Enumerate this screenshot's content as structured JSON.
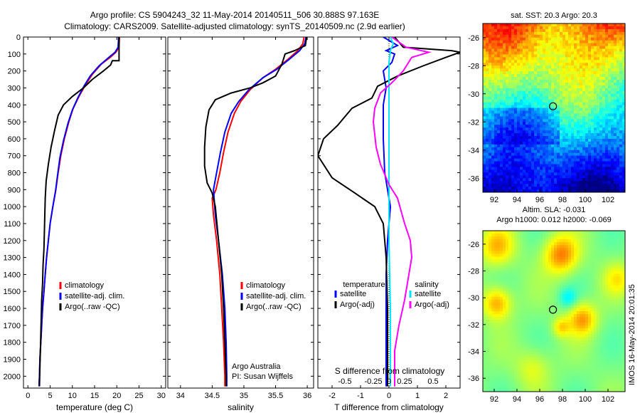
{
  "header": {
    "line1": "Argo profile: CS 5904243_32 11-May-2014 20140511_506 30.888S 97.163E",
    "line2": "Climatology: CARS2009. Satellite-adjusted climatology: synTS_20140509.nc (2.9d earlier)"
  },
  "colors": {
    "climatology": "#ff0000",
    "satellite": "#0000ff",
    "argo": "#000000",
    "sal_satellite": "#00e5ff",
    "sal_argo": "#ff00ff"
  },
  "chart_data": [
    {
      "type": "line",
      "id": "temperature",
      "xlabel": "temperature (deg C)",
      "ylabel": "",
      "xlim": [
        -1,
        31
      ],
      "ylim": [
        2070,
        0
      ],
      "xticks": [
        0,
        5,
        10,
        15,
        20,
        25,
        30
      ],
      "yticks": [
        0,
        100,
        200,
        300,
        400,
        500,
        600,
        700,
        800,
        900,
        1000,
        1100,
        1200,
        1300,
        1400,
        1500,
        1600,
        1700,
        1800,
        1900,
        2000
      ],
      "legend": [
        "climatology",
        "satellite-adj. clim.",
        "Argo(..raw -QC)"
      ],
      "series": [
        {
          "name": "climatology",
          "color": "#ff0000",
          "points": [
            [
              20.6,
              0
            ],
            [
              20.5,
              60
            ],
            [
              19.8,
              90
            ],
            [
              18.5,
              120
            ],
            [
              16.5,
              160
            ],
            [
              14.5,
              220
            ],
            [
              13,
              280
            ],
            [
              11.5,
              350
            ],
            [
              10.2,
              420
            ],
            [
              9.2,
              500
            ],
            [
              8.2,
              600
            ],
            [
              7.4,
              700
            ],
            [
              6.8,
              800
            ],
            [
              6.3,
              900
            ],
            [
              5.6,
              1000
            ],
            [
              5.0,
              1100
            ],
            [
              4.6,
              1200
            ],
            [
              4.2,
              1300
            ],
            [
              3.9,
              1400
            ],
            [
              3.6,
              1500
            ],
            [
              3.3,
              1600
            ],
            [
              3.1,
              1700
            ],
            [
              2.9,
              1800
            ],
            [
              2.7,
              1900
            ],
            [
              2.6,
              2000
            ],
            [
              2.5,
              2060
            ]
          ]
        },
        {
          "name": "satellite-adj. clim.",
          "color": "#0000ff",
          "points": [
            [
              20.4,
              0
            ],
            [
              20.3,
              60
            ],
            [
              19.6,
              90
            ],
            [
              18.2,
              120
            ],
            [
              16,
              170
            ],
            [
              14,
              230
            ],
            [
              12.6,
              290
            ],
            [
              11.2,
              360
            ],
            [
              10.0,
              430
            ],
            [
              9.0,
              510
            ],
            [
              8.0,
              610
            ],
            [
              7.2,
              710
            ],
            [
              6.7,
              810
            ],
            [
              6.2,
              910
            ],
            [
              5.6,
              1000
            ],
            [
              5.0,
              1100
            ],
            [
              4.6,
              1200
            ],
            [
              4.2,
              1300
            ],
            [
              3.9,
              1400
            ],
            [
              3.6,
              1500
            ],
            [
              3.3,
              1600
            ],
            [
              3.1,
              1700
            ],
            [
              2.9,
              1800
            ],
            [
              2.7,
              1900
            ],
            [
              2.6,
              2000
            ],
            [
              2.5,
              2060
            ]
          ]
        },
        {
          "name": "Argo(..raw -QC)",
          "color": "#000000",
          "points": [
            [
              20.5,
              0
            ],
            [
              20.5,
              140
            ],
            [
              19,
              140
            ],
            [
              18.6,
              165
            ],
            [
              17,
              200
            ],
            [
              14.5,
              250
            ],
            [
              12.5,
              300
            ],
            [
              10,
              350
            ],
            [
              8,
              400
            ],
            [
              6.8,
              460
            ],
            [
              6.0,
              550
            ],
            [
              5.2,
              650
            ],
            [
              4.6,
              750
            ],
            [
              4.1,
              850
            ],
            [
              3.9,
              950
            ],
            [
              3.8,
              1050
            ],
            [
              3.7,
              1150
            ],
            [
              3.6,
              1250
            ],
            [
              3.4,
              1350
            ],
            [
              3.3,
              1450
            ],
            [
              3.1,
              1550
            ],
            [
              3.0,
              1650
            ],
            [
              2.9,
              1750
            ],
            [
              2.8,
              1850
            ],
            [
              2.7,
              1950
            ],
            [
              2.6,
              2060
            ]
          ]
        }
      ]
    },
    {
      "type": "line",
      "id": "salinity",
      "xlabel": "salinity",
      "xlim": [
        33.8,
        36.1
      ],
      "ylim": [
        2070,
        0
      ],
      "xticks": [
        34,
        34.5,
        35,
        35.5,
        36
      ],
      "legend": [
        "climatology",
        "satellite-adj. clim.",
        "Argo(..raw -QC)"
      ],
      "annotations": [
        "Argo Australia",
        "PI: Susan Wijffels"
      ],
      "series": [
        {
          "name": "climatology",
          "color": "#ff0000",
          "points": [
            [
              35.95,
              0
            ],
            [
              35.93,
              40
            ],
            [
              35.85,
              80
            ],
            [
              35.7,
              130
            ],
            [
              35.5,
              190
            ],
            [
              35.3,
              240
            ],
            [
              35.1,
              310
            ],
            [
              34.95,
              380
            ],
            [
              34.85,
              450
            ],
            [
              34.75,
              560
            ],
            [
              34.68,
              680
            ],
            [
              34.62,
              800
            ],
            [
              34.56,
              900
            ],
            [
              34.5,
              950
            ],
            [
              34.52,
              1050
            ],
            [
              34.57,
              1200
            ],
            [
              34.62,
              1400
            ],
            [
              34.65,
              1600
            ],
            [
              34.68,
              1800
            ],
            [
              34.7,
              2000
            ],
            [
              34.7,
              2060
            ]
          ]
        },
        {
          "name": "satellite-adj. clim.",
          "color": "#0000ff",
          "points": [
            [
              35.98,
              0
            ],
            [
              35.96,
              40
            ],
            [
              35.88,
              80
            ],
            [
              35.72,
              130
            ],
            [
              35.52,
              190
            ],
            [
              35.3,
              240
            ],
            [
              35.08,
              310
            ],
            [
              34.92,
              380
            ],
            [
              34.8,
              450
            ],
            [
              34.7,
              560
            ],
            [
              34.63,
              680
            ],
            [
              34.57,
              800
            ],
            [
              34.52,
              900
            ],
            [
              34.53,
              950
            ],
            [
              34.55,
              1050
            ],
            [
              34.6,
              1200
            ],
            [
              34.66,
              1400
            ],
            [
              34.7,
              1600
            ],
            [
              34.72,
              1800
            ],
            [
              34.73,
              2000
            ],
            [
              34.73,
              2060
            ]
          ]
        },
        {
          "name": "Argo(..raw -QC)",
          "color": "#000000",
          "points": [
            [
              35.99,
              0
            ],
            [
              35.97,
              50
            ],
            [
              35.8,
              80
            ],
            [
              35.65,
              100
            ],
            [
              35.6,
              160
            ],
            [
              35.5,
              230
            ],
            [
              35.3,
              270
            ],
            [
              35.1,
              300
            ],
            [
              34.8,
              330
            ],
            [
              34.55,
              370
            ],
            [
              34.45,
              430
            ],
            [
              34.4,
              530
            ],
            [
              34.38,
              650
            ],
            [
              34.38,
              760
            ],
            [
              34.42,
              860
            ],
            [
              34.5,
              920
            ],
            [
              34.55,
              1000
            ],
            [
              34.6,
              1200
            ],
            [
              34.65,
              1400
            ],
            [
              34.68,
              1600
            ],
            [
              34.7,
              1800
            ],
            [
              34.72,
              2000
            ],
            [
              34.72,
              2060
            ]
          ]
        }
      ]
    },
    {
      "type": "line",
      "id": "differences",
      "xlabel": "T difference from climatology",
      "xlabel_top": "S difference from climatology",
      "xlim": [
        -2.5,
        2.5
      ],
      "ylim": [
        2070,
        0
      ],
      "xticks": [
        -2,
        -1,
        0,
        1,
        2
      ],
      "xticks_s": [
        "-0.5",
        "-0.25",
        "0",
        "0.25",
        "0.5"
      ],
      "legend_groups": [
        "temperature",
        "salinity"
      ],
      "legend": [
        "satellite",
        "Argo(-adj)",
        "satellite",
        "Argo(-adj)"
      ],
      "series": [
        {
          "name": "temperature satellite",
          "color": "#0000ff",
          "points": [
            [
              -0.2,
              0
            ],
            [
              0.3,
              50
            ],
            [
              -0.1,
              80
            ],
            [
              0.2,
              100
            ],
            [
              0.1,
              150
            ],
            [
              -0.2,
              200
            ],
            [
              -0.1,
              300
            ],
            [
              -0.2,
              400
            ],
            [
              -0.2,
              600
            ],
            [
              -0.15,
              800
            ],
            [
              -0.05,
              900
            ],
            [
              0,
              950
            ],
            [
              0.05,
              1000
            ],
            [
              0,
              1100
            ],
            [
              -0.05,
              1200
            ],
            [
              -0.1,
              1400
            ],
            [
              -0.1,
              1600
            ],
            [
              -0.1,
              1800
            ],
            [
              -0.1,
              2000
            ],
            [
              -0.1,
              2060
            ]
          ]
        },
        {
          "name": "temperature Argo(-adj)",
          "color": "#000000",
          "points": [
            [
              0.2,
              0
            ],
            [
              0.5,
              60
            ],
            [
              2.2,
              80
            ],
            [
              2.5,
              90
            ],
            [
              2.0,
              120
            ],
            [
              1.2,
              170
            ],
            [
              0.3,
              230
            ],
            [
              -0.4,
              290
            ],
            [
              -0.6,
              360
            ],
            [
              -1.3,
              420
            ],
            [
              -1.8,
              520
            ],
            [
              -2.3,
              600
            ],
            [
              -2.5,
              700
            ],
            [
              -2.0,
              830
            ],
            [
              -1.2,
              920
            ],
            [
              -0.5,
              1000
            ],
            [
              -0.2,
              1100
            ],
            [
              -0.1,
              1300
            ],
            [
              -0.05,
              1600
            ],
            [
              -0.05,
              2060
            ]
          ]
        },
        {
          "name": "salinity satellite",
          "color": "#00e5ff",
          "points": [
            [
              0.05,
              0
            ],
            [
              0.15,
              40
            ],
            [
              0.05,
              80
            ],
            [
              0.0,
              150
            ],
            [
              0.0,
              400
            ],
            [
              0.0,
              800
            ],
            [
              0.0,
              1200
            ],
            [
              0.05,
              1600
            ],
            [
              0.05,
              2060
            ]
          ]
        },
        {
          "name": "salinity Argo(-adj)",
          "color": "#ff00ff",
          "points": [
            [
              0.1,
              0
            ],
            [
              0.6,
              60
            ],
            [
              1.4,
              90
            ],
            [
              0.8,
              120
            ],
            [
              0.5,
              200
            ],
            [
              0.1,
              270
            ],
            [
              -0.3,
              330
            ],
            [
              -0.5,
              420
            ],
            [
              -0.55,
              500
            ],
            [
              -0.45,
              650
            ],
            [
              -0.3,
              750
            ],
            [
              0.0,
              870
            ],
            [
              0.3,
              950
            ],
            [
              0.55,
              1100
            ],
            [
              0.75,
              1200
            ],
            [
              0.8,
              1300
            ],
            [
              0.7,
              1400
            ],
            [
              0.55,
              1550
            ],
            [
              0.35,
              1700
            ],
            [
              0.2,
              1850
            ],
            [
              0.2,
              2060
            ]
          ]
        }
      ]
    },
    {
      "type": "heatmap",
      "id": "sst",
      "title": "sat. SST: 20.3 Argo: 20.3",
      "xlim": [
        91,
        103.5
      ],
      "ylim": [
        -37,
        -25
      ],
      "xticks": [
        92,
        94,
        96,
        98,
        100,
        102
      ],
      "yticks": [
        -26,
        -28,
        -30,
        -32,
        -34,
        -36
      ],
      "marker": {
        "lon": 97.163,
        "lat": -30.888
      }
    },
    {
      "type": "heatmap",
      "id": "sla",
      "title": "Altim. SLA: -0.031",
      "subtitle": "Argo h1000: 0.012 h2000: -0.069",
      "xlim": [
        91,
        103.5
      ],
      "ylim": [
        -37,
        -25
      ],
      "xticks": [
        92,
        94,
        96,
        98,
        100,
        102
      ],
      "yticks": [
        -26,
        -28,
        -30,
        -32,
        -34,
        -36
      ],
      "marker": {
        "lon": 97.163,
        "lat": -30.888
      }
    }
  ],
  "footer": {
    "stamp": "IMOS 16-May-2014 20:01:35"
  }
}
